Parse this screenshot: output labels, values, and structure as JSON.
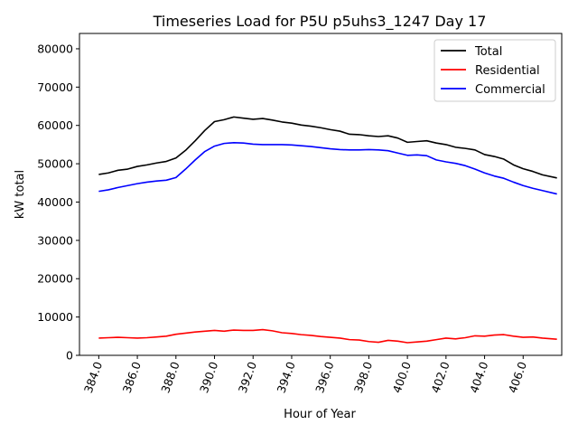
{
  "chart_data": {
    "type": "line",
    "title": "Timeseries Load for P5U p5uhs3_1247  Day 17",
    "xlabel": "Hour of Year",
    "ylabel": "kW total",
    "xlim": [
      383.0,
      408.0
    ],
    "ylim": [
      0,
      84000
    ],
    "x_ticks": [
      384.0,
      386.0,
      388.0,
      390.0,
      392.0,
      394.0,
      396.0,
      398.0,
      400.0,
      402.0,
      404.0,
      406.0
    ],
    "x_tick_labels": [
      "384.0",
      "386.0",
      "388.0",
      "390.0",
      "392.0",
      "394.0",
      "396.0",
      "398.0",
      "400.0",
      "402.0",
      "404.0",
      "406.0"
    ],
    "y_ticks": [
      0,
      10000,
      20000,
      30000,
      40000,
      50000,
      60000,
      70000,
      80000
    ],
    "y_tick_labels": [
      "0",
      "10000",
      "20000",
      "30000",
      "40000",
      "50000",
      "60000",
      "70000",
      "80000"
    ],
    "legend_position": "top-right",
    "x": [
      384.0,
      384.5,
      385.0,
      385.5,
      386.0,
      386.5,
      387.0,
      387.5,
      388.0,
      388.5,
      389.0,
      389.5,
      390.0,
      390.5,
      391.0,
      391.5,
      392.0,
      392.5,
      393.0,
      393.5,
      394.0,
      394.5,
      395.0,
      395.5,
      396.0,
      396.5,
      397.0,
      397.5,
      398.0,
      398.5,
      399.0,
      399.5,
      400.0,
      400.5,
      401.0,
      401.5,
      402.0,
      402.5,
      403.0,
      403.5,
      404.0,
      404.5,
      405.0,
      405.5,
      406.0,
      406.5,
      407.0,
      407.75
    ],
    "series": [
      {
        "name": "Total",
        "color": "#000000",
        "values": [
          47200,
          47600,
          48300,
          48600,
          49300,
          49700,
          50200,
          50600,
          51500,
          53500,
          56000,
          58700,
          61000,
          61500,
          62200,
          61900,
          61600,
          61800,
          61400,
          60900,
          60600,
          60100,
          59800,
          59400,
          58900,
          58500,
          57700,
          57600,
          57300,
          57100,
          57300,
          56700,
          55600,
          55800,
          56000,
          55400,
          55000,
          54300,
          54000,
          53600,
          52400,
          51900,
          51200,
          49700,
          48700,
          48000,
          47100,
          46300
        ]
      },
      {
        "name": "Residential",
        "color": "#ff0000",
        "values": [
          4500,
          4600,
          4700,
          4600,
          4500,
          4600,
          4800,
          5000,
          5500,
          5800,
          6100,
          6300,
          6500,
          6300,
          6600,
          6500,
          6500,
          6700,
          6400,
          5900,
          5700,
          5400,
          5200,
          4900,
          4700,
          4500,
          4100,
          4000,
          3600,
          3400,
          3900,
          3700,
          3300,
          3500,
          3700,
          4100,
          4500,
          4300,
          4600,
          5100,
          5000,
          5300,
          5400,
          5000,
          4700,
          4800,
          4500,
          4200
        ]
      },
      {
        "name": "Commercial",
        "color": "#0000ff",
        "values": [
          42800,
          43200,
          43800,
          44300,
          44800,
          45200,
          45500,
          45700,
          46400,
          48600,
          51000,
          53200,
          54600,
          55300,
          55500,
          55400,
          55100,
          55000,
          55000,
          55000,
          54900,
          54700,
          54500,
          54200,
          53900,
          53700,
          53600,
          53600,
          53700,
          53600,
          53400,
          52800,
          52200,
          52300,
          52100,
          51000,
          50500,
          50100,
          49500,
          48600,
          47600,
          46800,
          46200,
          45200,
          44300,
          43600,
          43000,
          42100
        ]
      }
    ]
  }
}
